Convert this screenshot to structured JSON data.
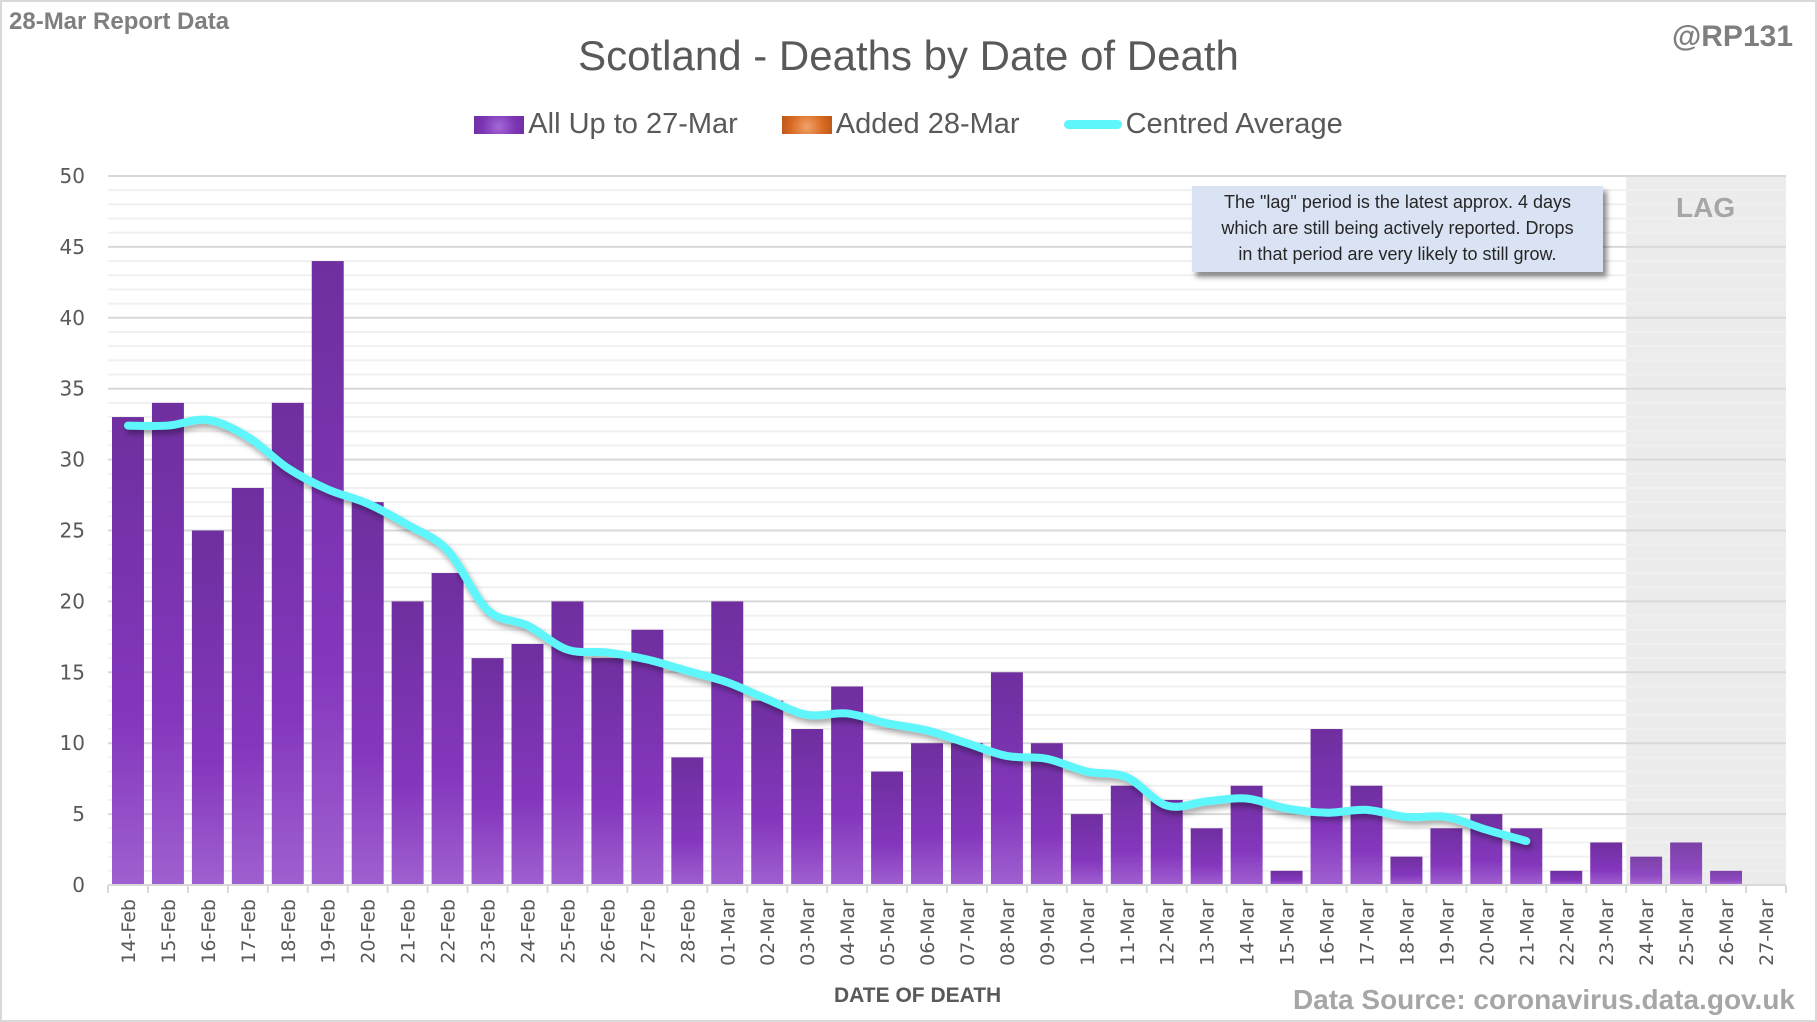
{
  "header": {
    "report_label": "28-Mar Report Data",
    "handle": "@RP131"
  },
  "annotation": {
    "callout_text_lines": [
      "The \"lag\" period is the latest approx. 4 days",
      "which are still being actively reported.  Drops",
      "in that period are very likely to still grow."
    ],
    "lag_label": "LAG"
  },
  "footer": {
    "source": "Data Source: coronavirus.data.gov.uk"
  },
  "colors": {
    "bar_main": "#7d35b5",
    "bar_added": "#d86a22",
    "average_line": "#5ff6fb",
    "lag_shade": "#ececec",
    "callout_bg": "#dae3f3"
  },
  "chart_data": {
    "type": "bar",
    "title": "Scotland - Deaths by Date of Death",
    "xlabel": "DATE OF DEATH",
    "ylabel": "",
    "ylim": [
      0,
      50
    ],
    "yticks": [
      0,
      5,
      10,
      15,
      20,
      25,
      30,
      35,
      40,
      45,
      50
    ],
    "grid": true,
    "legend_position": "top",
    "legend": [
      "All Up to 27-Mar",
      "Added 28-Mar",
      "Centred Average"
    ],
    "categories": [
      "14-Feb",
      "15-Feb",
      "16-Feb",
      "17-Feb",
      "18-Feb",
      "19-Feb",
      "20-Feb",
      "21-Feb",
      "22-Feb",
      "23-Feb",
      "24-Feb",
      "25-Feb",
      "26-Feb",
      "27-Feb",
      "28-Feb",
      "01-Mar",
      "02-Mar",
      "03-Mar",
      "04-Mar",
      "05-Mar",
      "06-Mar",
      "07-Mar",
      "08-Mar",
      "09-Mar",
      "10-Mar",
      "11-Mar",
      "12-Mar",
      "13-Mar",
      "14-Mar",
      "15-Mar",
      "16-Mar",
      "17-Mar",
      "18-Mar",
      "19-Mar",
      "20-Mar",
      "21-Mar",
      "22-Mar",
      "23-Mar",
      "24-Mar",
      "25-Mar",
      "26-Mar",
      "27-Mar"
    ],
    "series": [
      {
        "name": "All Up to 27-Mar",
        "type": "bar",
        "values": [
          33,
          34,
          25,
          28,
          34,
          44,
          27,
          20,
          22,
          16,
          17,
          20,
          16,
          18,
          9,
          20,
          13,
          11,
          14,
          8,
          10,
          10,
          15,
          10,
          5,
          7,
          6,
          4,
          7,
          1,
          11,
          7,
          2,
          4,
          5,
          4,
          1,
          3,
          2,
          3,
          1,
          0
        ]
      },
      {
        "name": "Added 28-Mar",
        "type": "bar",
        "values": [
          0,
          0,
          0,
          0,
          0,
          0,
          0,
          0,
          0,
          0,
          0,
          0,
          0,
          0,
          0,
          0,
          0,
          0,
          0,
          0,
          0,
          0,
          0,
          0,
          0,
          0,
          0,
          0,
          0,
          0,
          0,
          0,
          0,
          0,
          0,
          0,
          0,
          0,
          0,
          0,
          0,
          0
        ]
      },
      {
        "name": "Centred Average",
        "type": "line",
        "values": [
          32.4,
          32.4,
          32.8,
          31.6,
          29.4,
          27.9,
          26.9,
          25.4,
          23.6,
          19.4,
          18.3,
          16.6,
          16.4,
          15.9,
          15.1,
          14.3,
          13.1,
          12.0,
          12.1,
          11.4,
          10.9,
          10.0,
          9.1,
          8.9,
          8.0,
          7.6,
          5.6,
          5.9,
          6.1,
          5.4,
          5.1,
          5.3,
          4.8,
          4.8,
          3.9,
          3.1,
          null,
          null,
          null,
          null,
          null,
          null
        ]
      }
    ],
    "lag_period": {
      "from": "24-Mar",
      "to": "27-Mar"
    }
  }
}
